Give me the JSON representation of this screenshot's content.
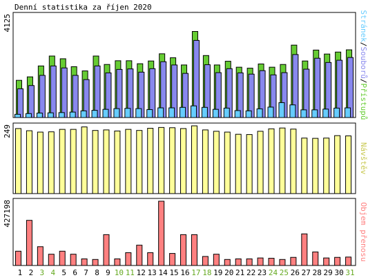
{
  "title": "Denní statistika za říjen 2020",
  "colors": {
    "panel_border": "#000000",
    "hits": "#66cc33",
    "files": "#8888ee",
    "pages": "#66ccff",
    "visits": "#ffff99",
    "kbytes": "#ff8080",
    "weekend_label": "#66aa22"
  },
  "side_labels": {
    "hits": "Přístupů",
    "files": "Souborů",
    "pages": "Stránek",
    "sep": "/",
    "visits": "Návštěv",
    "kbytes": "Objem přenosu"
  },
  "chart_data": [
    {
      "type": "bar",
      "categories": [
        "1",
        "2",
        "3",
        "4",
        "5",
        "6",
        "7",
        "8",
        "9",
        "10",
        "11",
        "12",
        "13",
        "14",
        "15",
        "16",
        "17",
        "18",
        "19",
        "20",
        "21",
        "22",
        "23",
        "24",
        "25",
        "26",
        "27",
        "28",
        "29",
        "30",
        "31"
      ],
      "ymax_label": "4125",
      "ylim": [
        0,
        4125
      ],
      "series": [
        {
          "name": "Přístupů",
          "values": [
            1500,
            1640,
            2080,
            2480,
            2370,
            2050,
            1880,
            2480,
            2140,
            2290,
            2290,
            2170,
            2280,
            2570,
            2410,
            2120,
            3470,
            2500,
            2120,
            2270,
            2030,
            1990,
            2160,
            2030,
            2140,
            2920,
            2280,
            2720,
            2560,
            2640,
            2730
          ]
        },
        {
          "name": "Souborů",
          "values": [
            1160,
            1290,
            1700,
            2080,
            2000,
            1700,
            1530,
            2080,
            1800,
            1940,
            1960,
            1830,
            1970,
            2250,
            2120,
            1780,
            3110,
            2130,
            1810,
            1970,
            1800,
            1750,
            1890,
            1720,
            1810,
            2540,
            1950,
            2390,
            2220,
            2310,
            2420
          ]
        },
        {
          "name": "Stránek",
          "values": [
            130,
            160,
            180,
            190,
            200,
            220,
            270,
            290,
            330,
            360,
            370,
            360,
            320,
            390,
            390,
            410,
            470,
            410,
            330,
            380,
            280,
            270,
            350,
            420,
            600,
            510,
            310,
            310,
            340,
            380,
            390
          ]
        }
      ]
    },
    {
      "type": "bar",
      "categories": [
        "1",
        "2",
        "3",
        "4",
        "5",
        "6",
        "7",
        "8",
        "9",
        "10",
        "11",
        "12",
        "13",
        "14",
        "15",
        "16",
        "17",
        "18",
        "19",
        "20",
        "21",
        "22",
        "23",
        "24",
        "25",
        "26",
        "27",
        "28",
        "29",
        "30",
        "31"
      ],
      "ymax_label": "249",
      "ylim": [
        0,
        249
      ],
      "series": [
        {
          "name": "Návštěv",
          "values": [
            239,
            231,
            226,
            227,
            236,
            236,
            245,
            232,
            234,
            230,
            236,
            232,
            240,
            243,
            242,
            239,
            249,
            234,
            229,
            226,
            218,
            217,
            229,
            238,
            241,
            237,
            204,
            203,
            204,
            213,
            212
          ]
        }
      ]
    },
    {
      "type": "bar",
      "categories": [
        "1",
        "2",
        "3",
        "4",
        "5",
        "6",
        "7",
        "8",
        "9",
        "10",
        "11",
        "12",
        "13",
        "14",
        "15",
        "16",
        "17",
        "18",
        "19",
        "20",
        "21",
        "22",
        "23",
        "24",
        "25",
        "26",
        "27",
        "28",
        "29",
        "30",
        "31"
      ],
      "ymax_label": "427198",
      "ylim": [
        0,
        427198
      ],
      "series": [
        {
          "name": "Objem přenosu",
          "values": [
            95000,
            300000,
            125000,
            75000,
            95000,
            75000,
            44000,
            40000,
            205000,
            44000,
            85000,
            135000,
            85000,
            427198,
            80000,
            205000,
            205000,
            60000,
            75000,
            40000,
            44000,
            44000,
            50000,
            48000,
            40000,
            54000,
            210000,
            90000,
            50000,
            54000,
            56000
          ]
        }
      ]
    }
  ],
  "weekend_days": [
    3,
    4,
    10,
    11,
    17,
    18,
    24,
    25,
    31
  ]
}
